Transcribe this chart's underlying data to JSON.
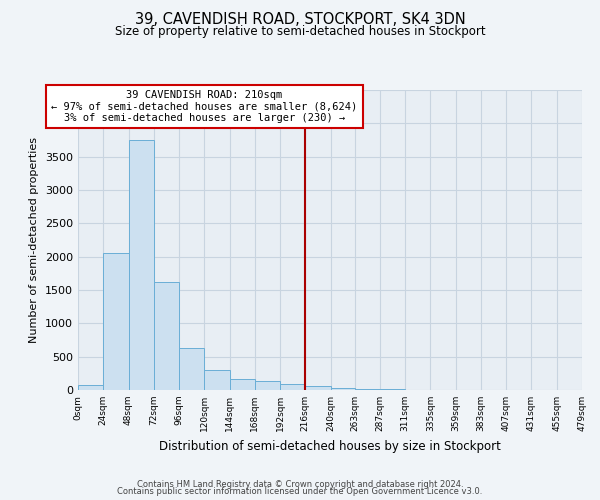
{
  "title": "39, CAVENDISH ROAD, STOCKPORT, SK4 3DN",
  "subtitle": "Size of property relative to semi-detached houses in Stockport",
  "xlabel": "Distribution of semi-detached houses by size in Stockport",
  "ylabel": "Number of semi-detached properties",
  "bar_edges": [
    0,
    24,
    48,
    72,
    96,
    120,
    144,
    168,
    192,
    216,
    240,
    263,
    287,
    311,
    335,
    359,
    383,
    407,
    431,
    455,
    479
  ],
  "bar_heights": [
    80,
    2060,
    3750,
    1620,
    635,
    295,
    165,
    140,
    95,
    55,
    30,
    15,
    10,
    5,
    3,
    0,
    0,
    2,
    0,
    0
  ],
  "bar_color": "#cce0f0",
  "bar_edge_color": "#6aaed6",
  "vline_x": 216,
  "vline_color": "#aa0000",
  "annotation_title": "39 CAVENDISH ROAD: 210sqm",
  "annotation_line1": "← 97% of semi-detached houses are smaller (8,624)",
  "annotation_line2": "3% of semi-detached houses are larger (230) →",
  "annotation_box_color": "#ffffff",
  "annotation_box_edge": "#cc0000",
  "ylim": [
    0,
    4500
  ],
  "tick_labels": [
    "0sqm",
    "24sqm",
    "48sqm",
    "72sqm",
    "96sqm",
    "120sqm",
    "144sqm",
    "168sqm",
    "192sqm",
    "216sqm",
    "240sqm",
    "263sqm",
    "287sqm",
    "311sqm",
    "335sqm",
    "359sqm",
    "383sqm",
    "407sqm",
    "431sqm",
    "455sqm",
    "479sqm"
  ],
  "footnote1": "Contains HM Land Registry data © Crown copyright and database right 2024.",
  "footnote2": "Contains public sector information licensed under the Open Government Licence v3.0.",
  "bg_color": "#f0f4f8",
  "plot_bg_color": "#e8eef4",
  "grid_color": "#c8d4e0"
}
